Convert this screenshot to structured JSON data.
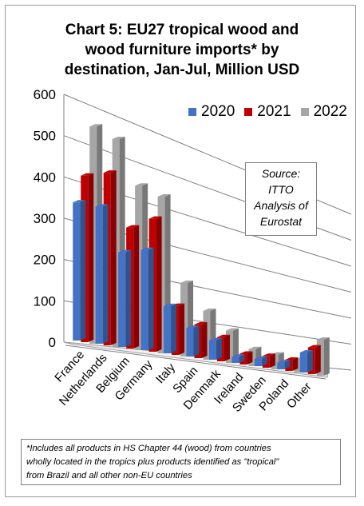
{
  "title_lines": [
    "Chart 5: EU27 tropical wood and",
    "wood furniture imports* by",
    "destination, Jan-Jul, Million USD"
  ],
  "source_lines": [
    "Source:",
    "ITTO",
    "Analysis of",
    "Eurostat"
  ],
  "footnote_lines": [
    "*Includes all products in HS Chapter 44 (wood) from countries",
    "wholly located in the tropics plus products identified as \"tropical\"",
    "from Brazil and all other non-EU countries"
  ],
  "chart_data": {
    "type": "bar",
    "categories": [
      "France",
      "Netherlands",
      "Belgium",
      "Germany",
      "Italy",
      "Spain",
      "Denmark",
      "Ireland",
      "Sweden",
      "Poland",
      "Other"
    ],
    "series": [
      {
        "name": "2020",
        "color": "#4472C4",
        "values": [
          340,
          350,
          250,
          275,
          135,
          85,
          60,
          20,
          25,
          25,
          75
        ]
      },
      {
        "name": "2021",
        "color": "#C00000",
        "values": [
          410,
          440,
          320,
          365,
          140,
          100,
          75,
          35,
          40,
          40,
          100
        ]
      },
      {
        "name": "2022",
        "color": "#A6A6A6",
        "values": [
          535,
          530,
          435,
          430,
          210,
          145,
          100,
          55,
          50,
          45,
          135
        ]
      }
    ],
    "y_ticks": [
      "0",
      "100",
      "200",
      "300",
      "400",
      "500",
      "600"
    ],
    "ylim": [
      0,
      600
    ],
    "grid": true,
    "legend_position": "top-right",
    "xlabel": "",
    "ylabel": ""
  }
}
